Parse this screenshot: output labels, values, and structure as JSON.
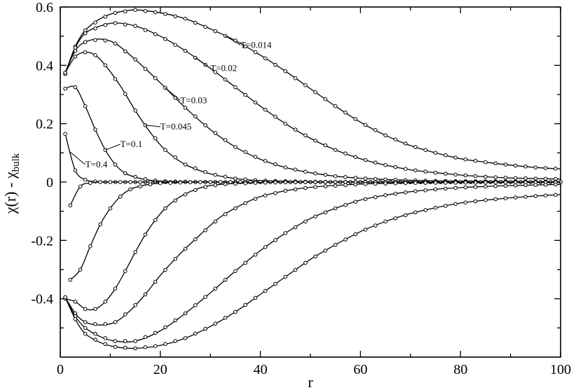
{
  "chart_data": {
    "type": "line",
    "title": "",
    "xlabel": "r",
    "ylabel": "χ(r) - χ",
    "ylabel_subscript": "bulk",
    "xlim": [
      0,
      100
    ],
    "ylim": [
      -0.6,
      0.6
    ],
    "xticks": [
      0,
      20,
      40,
      60,
      80,
      100
    ],
    "yticks": [
      0.6,
      0.4,
      0.2,
      0,
      -0.2,
      -0.4
    ],
    "ytick_labels": [
      "0.6",
      "0.4",
      "0.2",
      "0",
      "-0.2",
      "-0.4"
    ],
    "grid": false,
    "legend": "inline labels",
    "series": [
      {
        "name": "T=0.014",
        "label_at": [
          36,
          0.46
        ],
        "points": [
          [
            1,
            0.37
          ],
          [
            3,
            0.465
          ],
          [
            5,
            0.52
          ],
          [
            8,
            0.56
          ],
          [
            11,
            0.58
          ],
          [
            15,
            0.59
          ],
          [
            20,
            0.58
          ],
          [
            25,
            0.56
          ],
          [
            30,
            0.525
          ],
          [
            35,
            0.485
          ],
          [
            40,
            0.435
          ],
          [
            45,
            0.38
          ],
          [
            50,
            0.32
          ],
          [
            55,
            0.26
          ],
          [
            60,
            0.205
          ],
          [
            65,
            0.16
          ],
          [
            70,
            0.125
          ],
          [
            75,
            0.1
          ],
          [
            80,
            0.08
          ],
          [
            85,
            0.068
          ],
          [
            90,
            0.058
          ],
          [
            95,
            0.05
          ],
          [
            100,
            0.045
          ]
        ]
      },
      {
        "name": "T=0.02",
        "label_at": [
          30,
          0.38
        ],
        "points": [
          [
            1,
            0.375
          ],
          [
            3,
            0.46
          ],
          [
            5,
            0.51
          ],
          [
            8,
            0.535
          ],
          [
            11,
            0.545
          ],
          [
            15,
            0.535
          ],
          [
            20,
            0.5
          ],
          [
            25,
            0.45
          ],
          [
            30,
            0.39
          ],
          [
            35,
            0.325
          ],
          [
            40,
            0.26
          ],
          [
            45,
            0.2
          ],
          [
            50,
            0.15
          ],
          [
            55,
            0.11
          ],
          [
            60,
            0.08
          ],
          [
            65,
            0.058
          ],
          [
            70,
            0.042
          ],
          [
            75,
            0.032
          ],
          [
            80,
            0.024
          ],
          [
            85,
            0.018
          ],
          [
            90,
            0.014
          ],
          [
            95,
            0.012
          ],
          [
            100,
            0.01
          ]
        ]
      },
      {
        "name": "T=0.03",
        "label_at": [
          24,
          0.27
        ],
        "points": [
          [
            1,
            0.375
          ],
          [
            3,
            0.45
          ],
          [
            5,
            0.48
          ],
          [
            8,
            0.49
          ],
          [
            11,
            0.475
          ],
          [
            15,
            0.42
          ],
          [
            20,
            0.34
          ],
          [
            25,
            0.255
          ],
          [
            30,
            0.18
          ],
          [
            35,
            0.12
          ],
          [
            40,
            0.078
          ],
          [
            45,
            0.05
          ],
          [
            50,
            0.032
          ],
          [
            55,
            0.02
          ],
          [
            60,
            0.013
          ],
          [
            65,
            0.009
          ],
          [
            70,
            0.006
          ],
          [
            75,
            0.004
          ],
          [
            80,
            0.003
          ],
          [
            90,
            0.002
          ],
          [
            100,
            0.001
          ]
        ]
      },
      {
        "name": "T=0.045",
        "label_at": [
          20,
          0.18
        ],
        "points": [
          [
            1,
            0.375
          ],
          [
            3,
            0.43
          ],
          [
            5,
            0.445
          ],
          [
            7,
            0.435
          ],
          [
            9,
            0.4
          ],
          [
            12,
            0.33
          ],
          [
            15,
            0.245
          ],
          [
            18,
            0.17
          ],
          [
            21,
            0.11
          ],
          [
            25,
            0.06
          ],
          [
            30,
            0.028
          ],
          [
            35,
            0.012
          ],
          [
            40,
            0.005
          ],
          [
            50,
            0.001
          ],
          [
            60,
            0
          ],
          [
            80,
            0
          ],
          [
            100,
            0
          ]
        ]
      },
      {
        "name": "T=0.1",
        "label_at": [
          12,
          0.12
        ],
        "points": [
          [
            1,
            0.32
          ],
          [
            3,
            0.325
          ],
          [
            5,
            0.26
          ],
          [
            7,
            0.18
          ],
          [
            9,
            0.11
          ],
          [
            11,
            0.06
          ],
          [
            13,
            0.03
          ],
          [
            16,
            0.012
          ],
          [
            20,
            0.003
          ],
          [
            25,
            0.001
          ],
          [
            30,
            0
          ],
          [
            40,
            0
          ],
          [
            60,
            0
          ],
          [
            80,
            0
          ],
          [
            100,
            0
          ]
        ]
      },
      {
        "name": "T=0.4",
        "label_at": [
          5,
          0.05
        ],
        "points": [
          [
            1,
            0.165
          ],
          [
            3,
            0.04
          ],
          [
            5,
            0.008
          ],
          [
            7,
            0.002
          ],
          [
            9,
            0
          ],
          [
            12,
            0
          ],
          [
            16,
            0
          ],
          [
            20,
            0
          ],
          [
            30,
            0
          ],
          [
            40,
            0
          ],
          [
            60,
            0
          ],
          [
            80,
            0
          ],
          [
            100,
            0
          ]
        ]
      },
      {
        "name": "",
        "points": [
          [
            2,
            -0.08
          ],
          [
            4,
            -0.015
          ],
          [
            6,
            -0.003
          ],
          [
            8,
            0
          ],
          [
            12,
            0
          ],
          [
            16,
            0
          ],
          [
            20,
            0
          ],
          [
            30,
            0
          ],
          [
            40,
            0
          ],
          [
            60,
            0
          ],
          [
            80,
            0
          ],
          [
            100,
            0
          ]
        ]
      },
      {
        "name": "",
        "points": [
          [
            2,
            -0.335
          ],
          [
            4,
            -0.3
          ],
          [
            6,
            -0.22
          ],
          [
            8,
            -0.145
          ],
          [
            10,
            -0.09
          ],
          [
            12,
            -0.05
          ],
          [
            14,
            -0.025
          ],
          [
            17,
            -0.01
          ],
          [
            20,
            -0.004
          ],
          [
            25,
            -0.001
          ],
          [
            30,
            0
          ],
          [
            50,
            0
          ],
          [
            100,
            0
          ]
        ]
      },
      {
        "name": "",
        "points": [
          [
            1,
            -0.4
          ],
          [
            3,
            -0.41
          ],
          [
            5,
            -0.435
          ],
          [
            7,
            -0.435
          ],
          [
            9,
            -0.41
          ],
          [
            11,
            -0.365
          ],
          [
            13,
            -0.305
          ],
          [
            15,
            -0.24
          ],
          [
            17,
            -0.18
          ],
          [
            19,
            -0.13
          ],
          [
            21,
            -0.09
          ],
          [
            24,
            -0.05
          ],
          [
            28,
            -0.02
          ],
          [
            32,
            -0.008
          ],
          [
            40,
            -0.002
          ],
          [
            50,
            0
          ],
          [
            100,
            0
          ]
        ]
      },
      {
        "name": "",
        "points": [
          [
            1,
            -0.395
          ],
          [
            3,
            -0.45
          ],
          [
            5,
            -0.48
          ],
          [
            8,
            -0.49
          ],
          [
            11,
            -0.48
          ],
          [
            14,
            -0.44
          ],
          [
            17,
            -0.385
          ],
          [
            20,
            -0.32
          ],
          [
            24,
            -0.245
          ],
          [
            28,
            -0.18
          ],
          [
            32,
            -0.12
          ],
          [
            36,
            -0.08
          ],
          [
            40,
            -0.05
          ],
          [
            45,
            -0.03
          ],
          [
            50,
            -0.018
          ],
          [
            60,
            -0.007
          ],
          [
            70,
            -0.003
          ],
          [
            80,
            -0.002
          ],
          [
            100,
            -0.001
          ]
        ]
      },
      {
        "name": "",
        "points": [
          [
            1,
            -0.395
          ],
          [
            3,
            -0.46
          ],
          [
            5,
            -0.5
          ],
          [
            8,
            -0.53
          ],
          [
            11,
            -0.545
          ],
          [
            15,
            -0.545
          ],
          [
            20,
            -0.51
          ],
          [
            25,
            -0.45
          ],
          [
            30,
            -0.38
          ],
          [
            35,
            -0.305
          ],
          [
            40,
            -0.235
          ],
          [
            45,
            -0.175
          ],
          [
            50,
            -0.125
          ],
          [
            55,
            -0.09
          ],
          [
            60,
            -0.062
          ],
          [
            65,
            -0.045
          ],
          [
            70,
            -0.033
          ],
          [
            75,
            -0.025
          ],
          [
            80,
            -0.019
          ],
          [
            85,
            -0.015
          ],
          [
            90,
            -0.012
          ],
          [
            95,
            -0.01
          ],
          [
            100,
            -0.008
          ]
        ]
      },
      {
        "name": "",
        "points": [
          [
            1,
            -0.395
          ],
          [
            3,
            -0.47
          ],
          [
            5,
            -0.52
          ],
          [
            8,
            -0.55
          ],
          [
            11,
            -0.565
          ],
          [
            15,
            -0.57
          ],
          [
            20,
            -0.56
          ],
          [
            25,
            -0.535
          ],
          [
            30,
            -0.495
          ],
          [
            35,
            -0.445
          ],
          [
            40,
            -0.385
          ],
          [
            45,
            -0.325
          ],
          [
            50,
            -0.265
          ],
          [
            55,
            -0.215
          ],
          [
            60,
            -0.17
          ],
          [
            65,
            -0.135
          ],
          [
            70,
            -0.108
          ],
          [
            75,
            -0.088
          ],
          [
            80,
            -0.072
          ],
          [
            85,
            -0.062
          ],
          [
            90,
            -0.054
          ],
          [
            95,
            -0.048
          ],
          [
            100,
            -0.043
          ]
        ]
      }
    ]
  }
}
